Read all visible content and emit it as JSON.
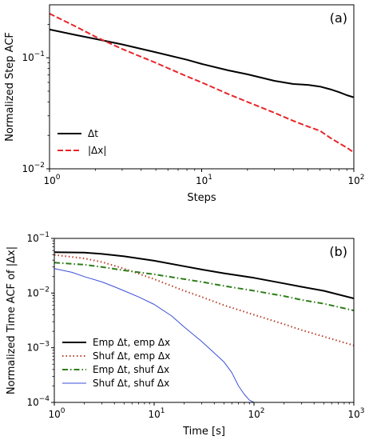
{
  "chart_data": [
    {
      "type": "line",
      "panel_label": "(a)",
      "xlabel": "Steps",
      "ylabel": "Normalized Step ACF",
      "xscale": "log",
      "yscale": "log",
      "xlim": [
        1,
        100
      ],
      "ylim": [
        0.01,
        0.3
      ],
      "x_ticks": [
        {
          "value": 1,
          "base": "10",
          "exp": "0"
        },
        {
          "value": 10,
          "base": "10",
          "exp": "1"
        },
        {
          "value": 100,
          "base": "10",
          "exp": "2"
        }
      ],
      "y_ticks": [
        {
          "value": 0.01,
          "base": "10",
          "exp": "−2"
        },
        {
          "value": 0.1,
          "base": "10",
          "exp": "−1"
        }
      ],
      "legend_position": "lower-left",
      "series": [
        {
          "name": "Δt",
          "color": "#000000",
          "dash": "solid",
          "x": [
            1,
            1.5,
            2,
            3,
            5,
            8,
            10,
            15,
            20,
            30,
            40,
            50,
            60,
            70,
            80,
            90,
            100
          ],
          "y": [
            0.18,
            0.16,
            0.148,
            0.132,
            0.112,
            0.096,
            0.088,
            0.077,
            0.071,
            0.062,
            0.058,
            0.057,
            0.055,
            0.052,
            0.049,
            0.046,
            0.044
          ]
        },
        {
          "name": "|Δx|",
          "color": "#e8262a",
          "dash": "dashed",
          "x": [
            1,
            1.5,
            2,
            3,
            5,
            8,
            10,
            15,
            20,
            30,
            40,
            50,
            60,
            70,
            80,
            90,
            100
          ],
          "y": [
            0.25,
            0.19,
            0.155,
            0.12,
            0.09,
            0.068,
            0.06,
            0.047,
            0.04,
            0.032,
            0.027,
            0.024,
            0.022,
            0.019,
            0.017,
            0.0155,
            0.014
          ]
        }
      ]
    },
    {
      "type": "line",
      "panel_label": "(b)",
      "xlabel": "Time [s]",
      "ylabel": "Normalized Time ACF of |Δx|",
      "xscale": "log",
      "yscale": "log",
      "xlim": [
        1,
        1000
      ],
      "ylim": [
        0.0001,
        0.1
      ],
      "x_ticks": [
        {
          "value": 1,
          "base": "10",
          "exp": "0"
        },
        {
          "value": 10,
          "base": "10",
          "exp": "1"
        },
        {
          "value": 100,
          "base": "10",
          "exp": "2"
        },
        {
          "value": 1000,
          "base": "10",
          "exp": "3"
        }
      ],
      "y_ticks": [
        {
          "value": 0.0001,
          "base": "10",
          "exp": "−4"
        },
        {
          "value": 0.001,
          "base": "10",
          "exp": "−3"
        },
        {
          "value": 0.01,
          "base": "10",
          "exp": "−2"
        },
        {
          "value": 0.1,
          "base": "10",
          "exp": "−1"
        }
      ],
      "legend_position": "lower-left",
      "series": [
        {
          "name": "Emp Δt, emp Δx",
          "color": "#000000",
          "dash": "solid",
          "x": [
            1,
            2,
            3,
            5,
            10,
            20,
            30,
            50,
            100,
            200,
            300,
            500,
            1000
          ],
          "y": [
            0.056,
            0.055,
            0.052,
            0.047,
            0.039,
            0.031,
            0.027,
            0.023,
            0.019,
            0.015,
            0.013,
            0.011,
            0.008
          ]
        },
        {
          "name": "Shuf Δt, emp Δx",
          "color": "#b8402a",
          "dash": "dotted",
          "x": [
            1,
            2,
            3,
            5,
            10,
            20,
            30,
            50,
            100,
            200,
            300,
            500,
            1000
          ],
          "y": [
            0.05,
            0.043,
            0.037,
            0.028,
            0.018,
            0.011,
            0.0085,
            0.006,
            0.004,
            0.0027,
            0.0021,
            0.0016,
            0.0011
          ]
        },
        {
          "name": "Emp Δt, shuf Δx",
          "color": "#2e7d1a",
          "dash": "dashdot",
          "x": [
            1,
            2,
            3,
            5,
            10,
            20,
            30,
            50,
            100,
            200,
            300,
            500,
            1000
          ],
          "y": [
            0.036,
            0.033,
            0.03,
            0.026,
            0.022,
            0.018,
            0.016,
            0.0135,
            0.011,
            0.0088,
            0.0075,
            0.0064,
            0.0048
          ]
        },
        {
          "name": "Shuf Δt, shuf Δx",
          "color": "#3a4fd8",
          "dash": "solid",
          "thin": true,
          "x": [
            1,
            1.5,
            2,
            3,
            4,
            5,
            7,
            10,
            15,
            20,
            30,
            40,
            50,
            60,
            70,
            80,
            90,
            100
          ],
          "y": [
            0.028,
            0.024,
            0.02,
            0.016,
            0.013,
            0.011,
            0.0085,
            0.0062,
            0.0038,
            0.0024,
            0.0013,
            0.0008,
            0.00055,
            0.00035,
            0.0002,
            0.00014,
            0.00011,
            0.0001
          ]
        }
      ]
    }
  ]
}
